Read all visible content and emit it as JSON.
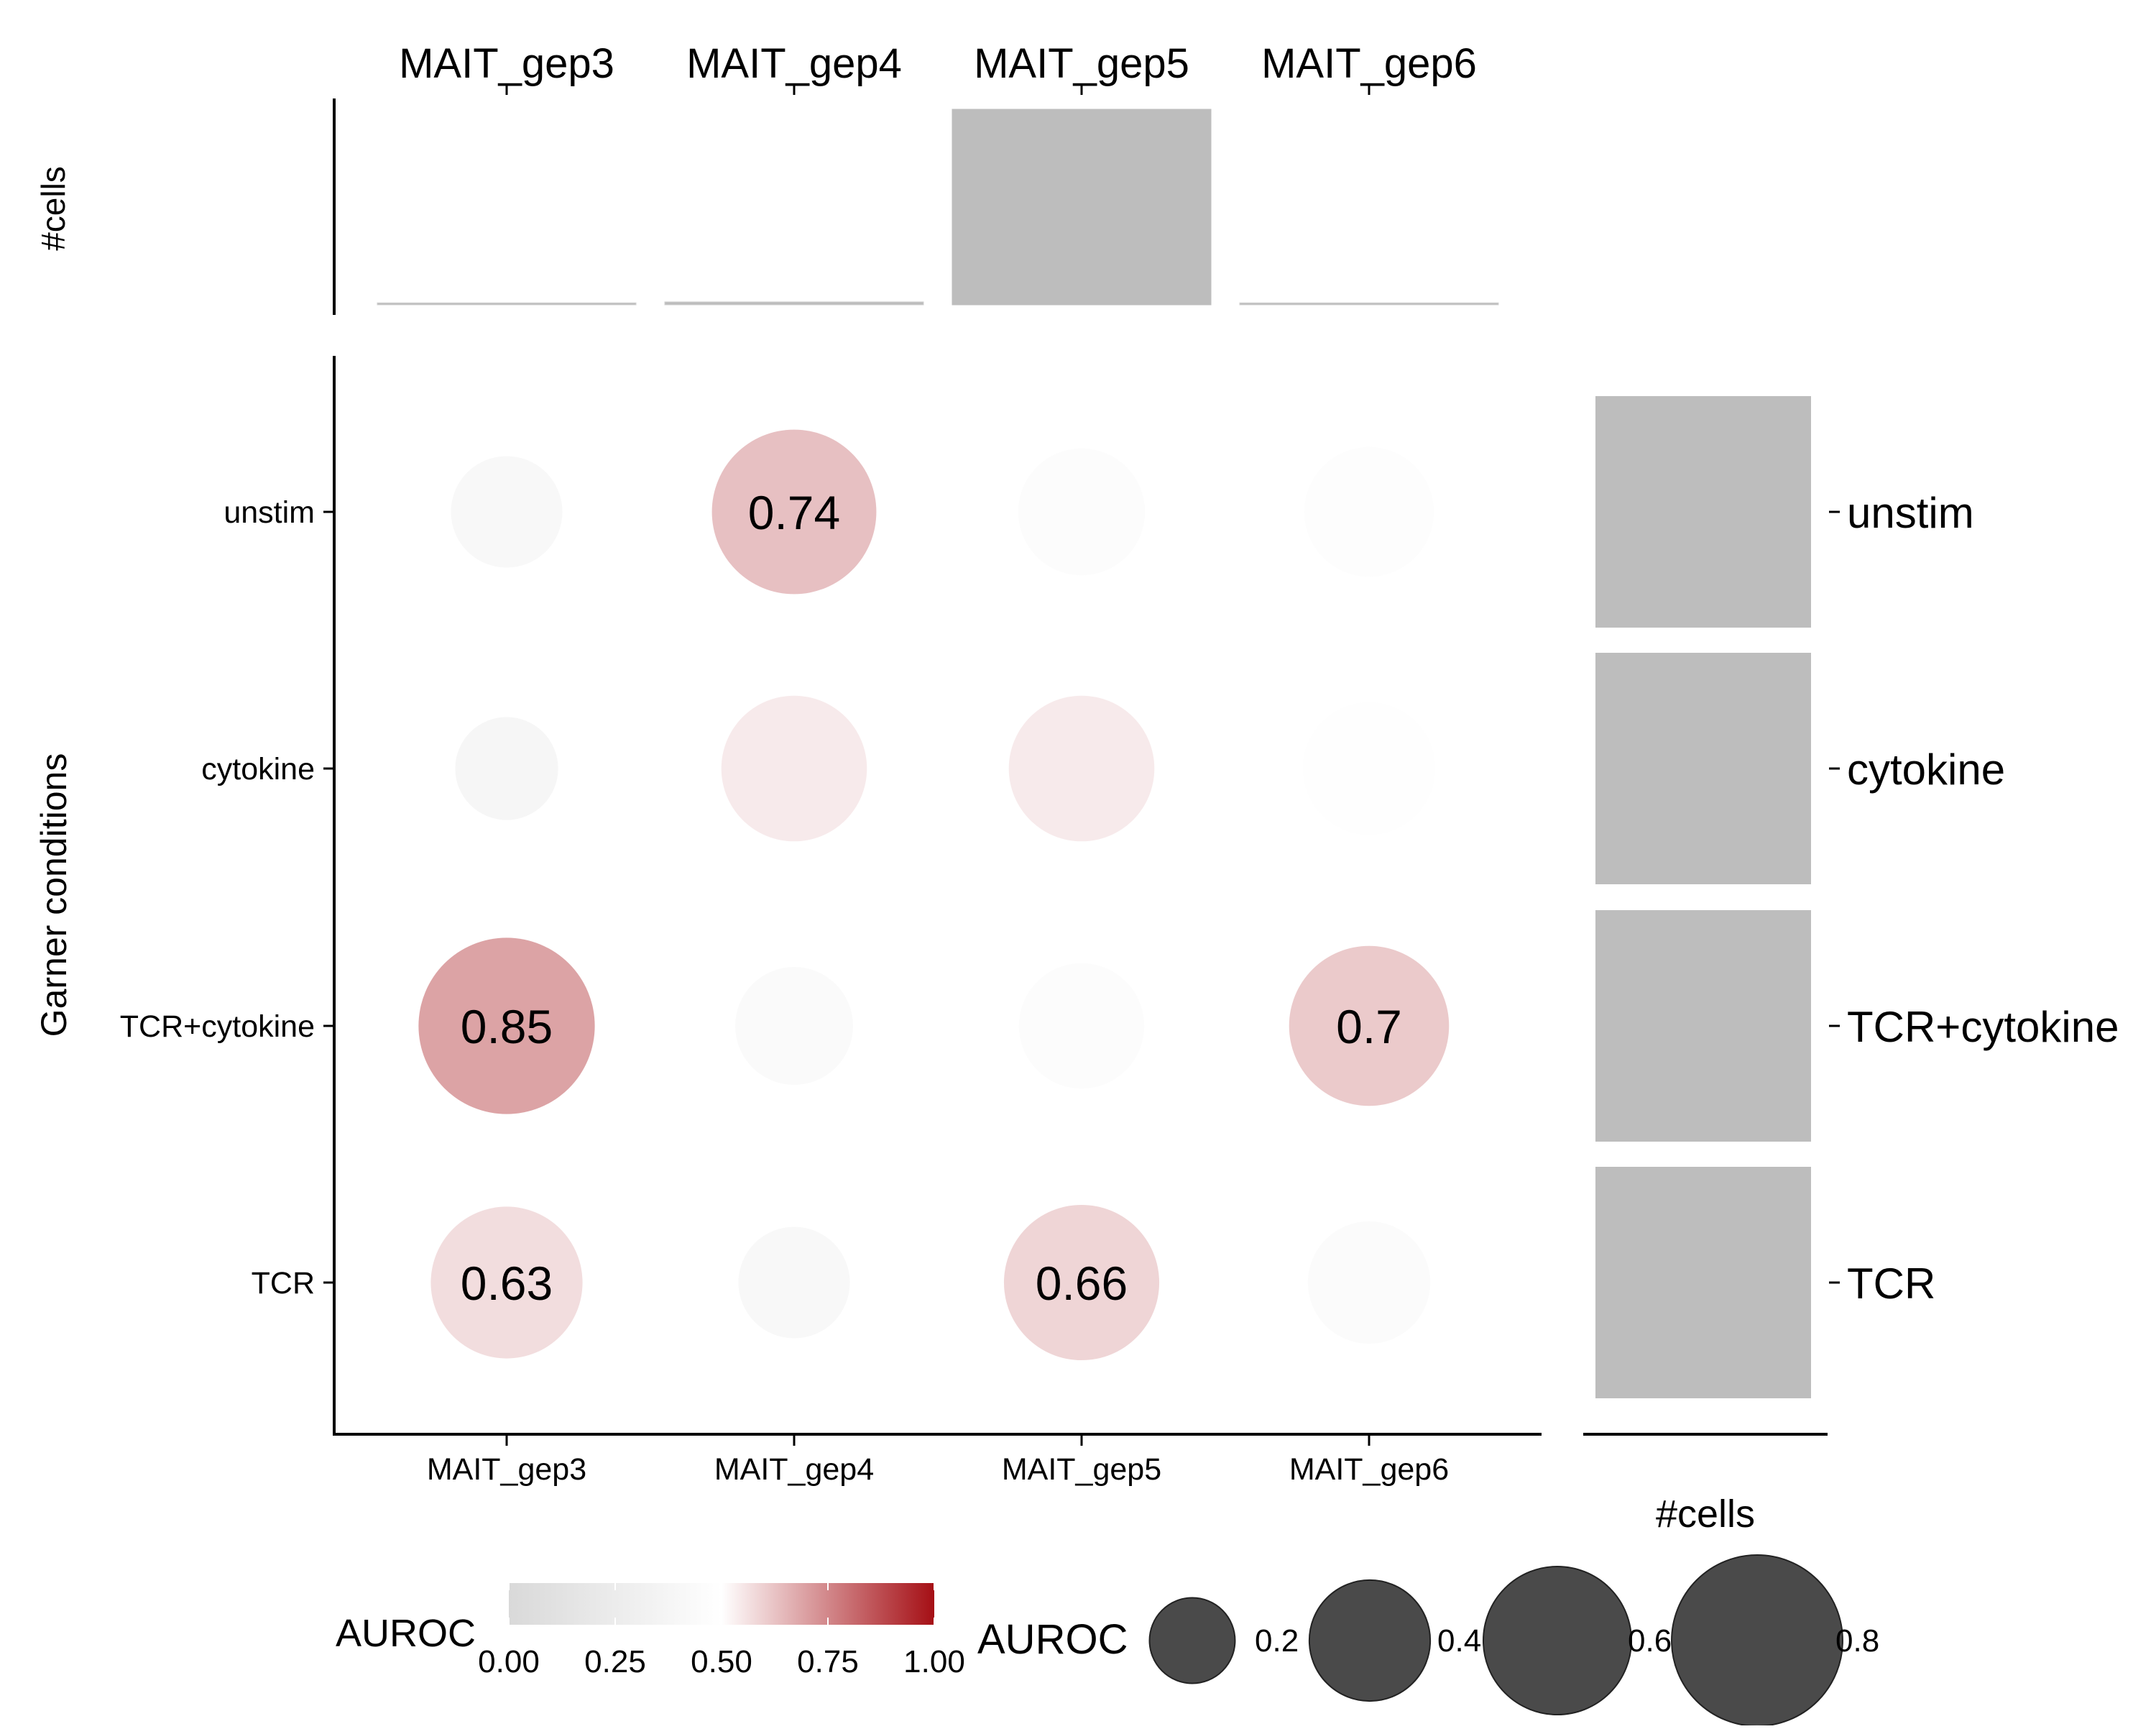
{
  "chart_data": {
    "type": "bubble-heatmap",
    "title": "",
    "ylabel": "Garner conditions",
    "top_panel_label": "#cells",
    "right_panel_label": "#cells",
    "columns": [
      "MAIT_gep3",
      "MAIT_gep4",
      "MAIT_gep5",
      "MAIT_gep6"
    ],
    "rows": [
      "unstim",
      "cytokine",
      "TCR+cytokine",
      "TCR"
    ],
    "auroc": [
      [
        0.34,
        0.74,
        0.44,
        0.46
      ],
      [
        0.29,
        0.58,
        0.58,
        0.48
      ],
      [
        0.85,
        0.38,
        0.43,
        0.7
      ],
      [
        0.63,
        0.34,
        0.66,
        0.41
      ]
    ],
    "value_labels": [
      [
        "",
        "0.74",
        "",
        ""
      ],
      [
        "",
        "",
        "",
        ""
      ],
      [
        "0.85",
        "",
        "",
        "0.7"
      ],
      [
        "0.63",
        "",
        "0.66",
        ""
      ]
    ],
    "top_cells": [
      0.01,
      0.015,
      1.0,
      0.01
    ],
    "right_cells": [
      1.0,
      1.0,
      1.0,
      1.0
    ],
    "color_legend": {
      "title": "AUROC",
      "ticks": [
        "0.00",
        "0.25",
        "0.50",
        "0.75",
        "1.00"
      ],
      "low_color": "#d9d9d9",
      "mid_color": "#ffffff",
      "high_color": "#a50f15"
    },
    "size_legend": {
      "title": "AUROC",
      "values": [
        0.2,
        0.4,
        0.6,
        0.8
      ],
      "labels": [
        "0.2",
        "0.4",
        "0.6",
        "0.8"
      ],
      "color": "#4a4a4a"
    },
    "bar_color": "#bdbdbd"
  }
}
